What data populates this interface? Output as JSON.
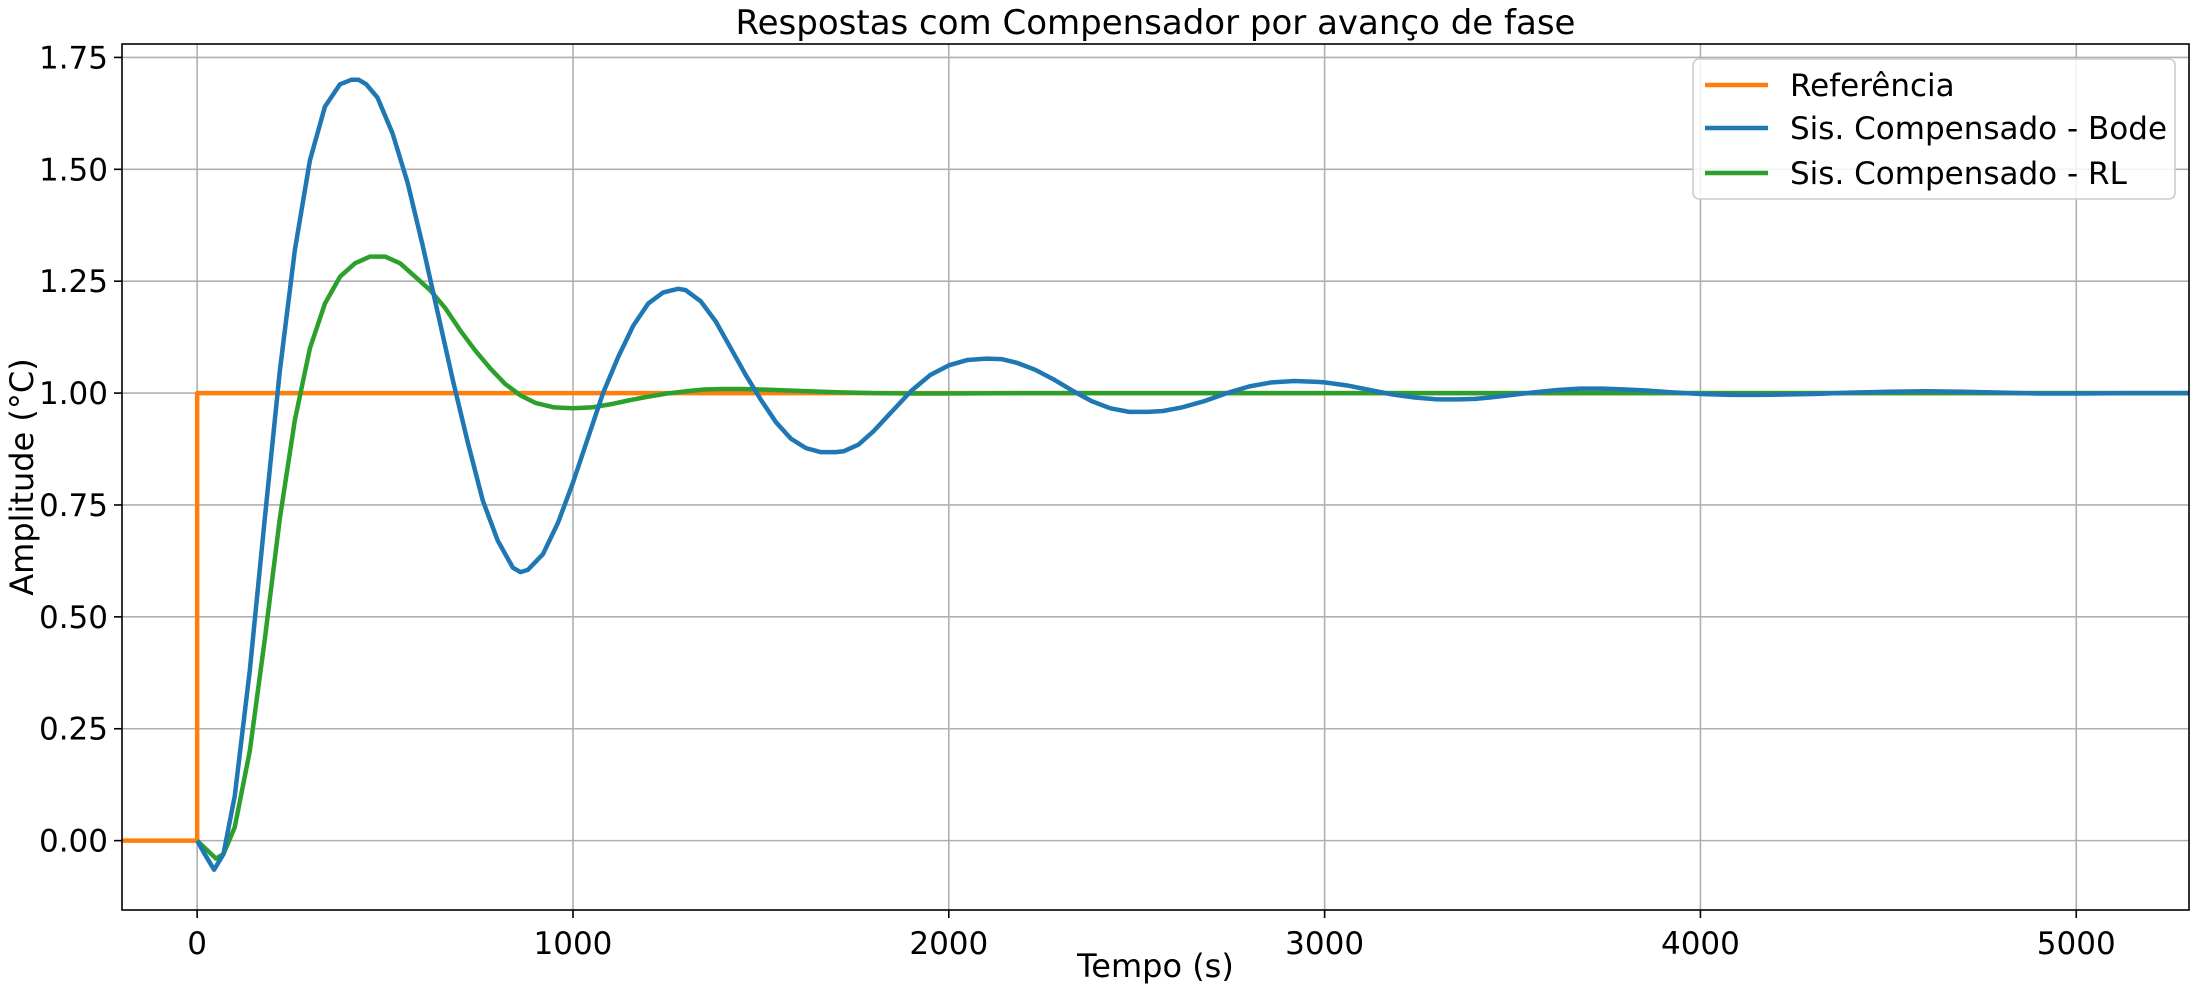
{
  "chart_data": {
    "type": "line",
    "title": "Respostas com Compensador por avanço de fase",
    "xlabel": "Tempo (s)",
    "ylabel": "Amplitude (°C)",
    "xlim": [
      -200,
      5300
    ],
    "ylim": [
      -0.155,
      1.78
    ],
    "xticks": [
      0,
      1000,
      2000,
      3000,
      4000,
      5000
    ],
    "xtick_labels": [
      "0",
      "1000",
      "2000",
      "3000",
      "4000",
      "5000"
    ],
    "yticks": [
      0.0,
      0.25,
      0.5,
      0.75,
      1.0,
      1.25,
      1.5,
      1.75
    ],
    "ytick_labels": [
      "0.00",
      "0.25",
      "0.50",
      "0.75",
      "1.00",
      "1.25",
      "1.50",
      "1.75"
    ],
    "grid": true,
    "legend_position": "top-right",
    "series": [
      {
        "name": "Referência",
        "color": "#ff7f0e",
        "x": [
          -200,
          0,
          0,
          5300
        ],
        "y": [
          0,
          0,
          1,
          1
        ]
      },
      {
        "name": "Sis. Compensado - Bode",
        "color": "#1f77b4",
        "x": [
          0,
          20,
          45,
          70,
          100,
          140,
          180,
          220,
          260,
          300,
          340,
          380,
          410,
          430,
          450,
          480,
          520,
          560,
          600,
          640,
          680,
          720,
          760,
          800,
          840,
          860,
          880,
          920,
          960,
          1000,
          1040,
          1080,
          1120,
          1160,
          1200,
          1240,
          1280,
          1300,
          1340,
          1380,
          1420,
          1460,
          1500,
          1540,
          1580,
          1620,
          1660,
          1700,
          1720,
          1760,
          1800,
          1850,
          1900,
          1950,
          2000,
          2050,
          2100,
          2140,
          2180,
          2230,
          2280,
          2330,
          2380,
          2430,
          2480,
          2530,
          2570,
          2620,
          2680,
          2740,
          2800,
          2860,
          2920,
          2980,
          3000,
          3060,
          3120,
          3180,
          3240,
          3300,
          3360,
          3400,
          3440,
          3500,
          3560,
          3620,
          3680,
          3740,
          3800,
          3850,
          3920,
          4000,
          4080,
          4160,
          4240,
          4300,
          4400,
          4500,
          4600,
          4700,
          4800,
          4900,
          5000,
          5150,
          5300
        ],
        "y": [
          0.0,
          -0.03,
          -0.065,
          -0.03,
          0.1,
          0.38,
          0.72,
          1.05,
          1.32,
          1.52,
          1.64,
          1.69,
          1.7,
          1.7,
          1.69,
          1.66,
          1.58,
          1.47,
          1.33,
          1.18,
          1.03,
          0.89,
          0.76,
          0.67,
          0.61,
          0.6,
          0.605,
          0.64,
          0.71,
          0.8,
          0.9,
          1.0,
          1.08,
          1.15,
          1.2,
          1.225,
          1.233,
          1.23,
          1.205,
          1.16,
          1.1,
          1.04,
          0.985,
          0.935,
          0.898,
          0.877,
          0.868,
          0.868,
          0.87,
          0.885,
          0.915,
          0.96,
          1.005,
          1.04,
          1.062,
          1.074,
          1.077,
          1.076,
          1.068,
          1.052,
          1.03,
          1.005,
          0.982,
          0.966,
          0.958,
          0.958,
          0.96,
          0.968,
          0.982,
          1.0,
          1.015,
          1.024,
          1.027,
          1.025,
          1.024,
          1.017,
          1.007,
          0.997,
          0.99,
          0.986,
          0.986,
          0.987,
          0.99,
          0.996,
          1.002,
          1.007,
          1.01,
          1.01,
          1.008,
          1.006,
          1.002,
          0.998,
          0.996,
          0.996,
          0.997,
          0.998,
          1.001,
          1.003,
          1.004,
          1.003,
          1.001,
          0.999,
          0.999,
          1.0,
          1.0
        ]
      },
      {
        "name": "Sis. Compensado - RL",
        "color": "#2ca02c",
        "x": [
          0,
          25,
          50,
          70,
          100,
          140,
          180,
          220,
          260,
          300,
          340,
          380,
          420,
          460,
          500,
          540,
          580,
          620,
          660,
          700,
          740,
          780,
          820,
          860,
          900,
          950,
          1000,
          1050,
          1100,
          1150,
          1200,
          1250,
          1300,
          1350,
          1400,
          1450,
          1500,
          1600,
          1700,
          1800,
          1900,
          2000,
          2200,
          2500,
          3000,
          4000,
          5300
        ],
        "y": [
          0.0,
          -0.02,
          -0.04,
          -0.03,
          0.03,
          0.2,
          0.45,
          0.72,
          0.94,
          1.1,
          1.2,
          1.26,
          1.29,
          1.305,
          1.305,
          1.29,
          1.26,
          1.23,
          1.19,
          1.14,
          1.095,
          1.055,
          1.02,
          0.995,
          0.978,
          0.968,
          0.966,
          0.968,
          0.975,
          0.984,
          0.992,
          0.999,
          1.004,
          1.008,
          1.009,
          1.009,
          1.008,
          1.005,
          1.002,
          1.0,
          0.999,
          0.999,
          1.0,
          1.0,
          1.0,
          1.0,
          1.0
        ]
      }
    ]
  }
}
